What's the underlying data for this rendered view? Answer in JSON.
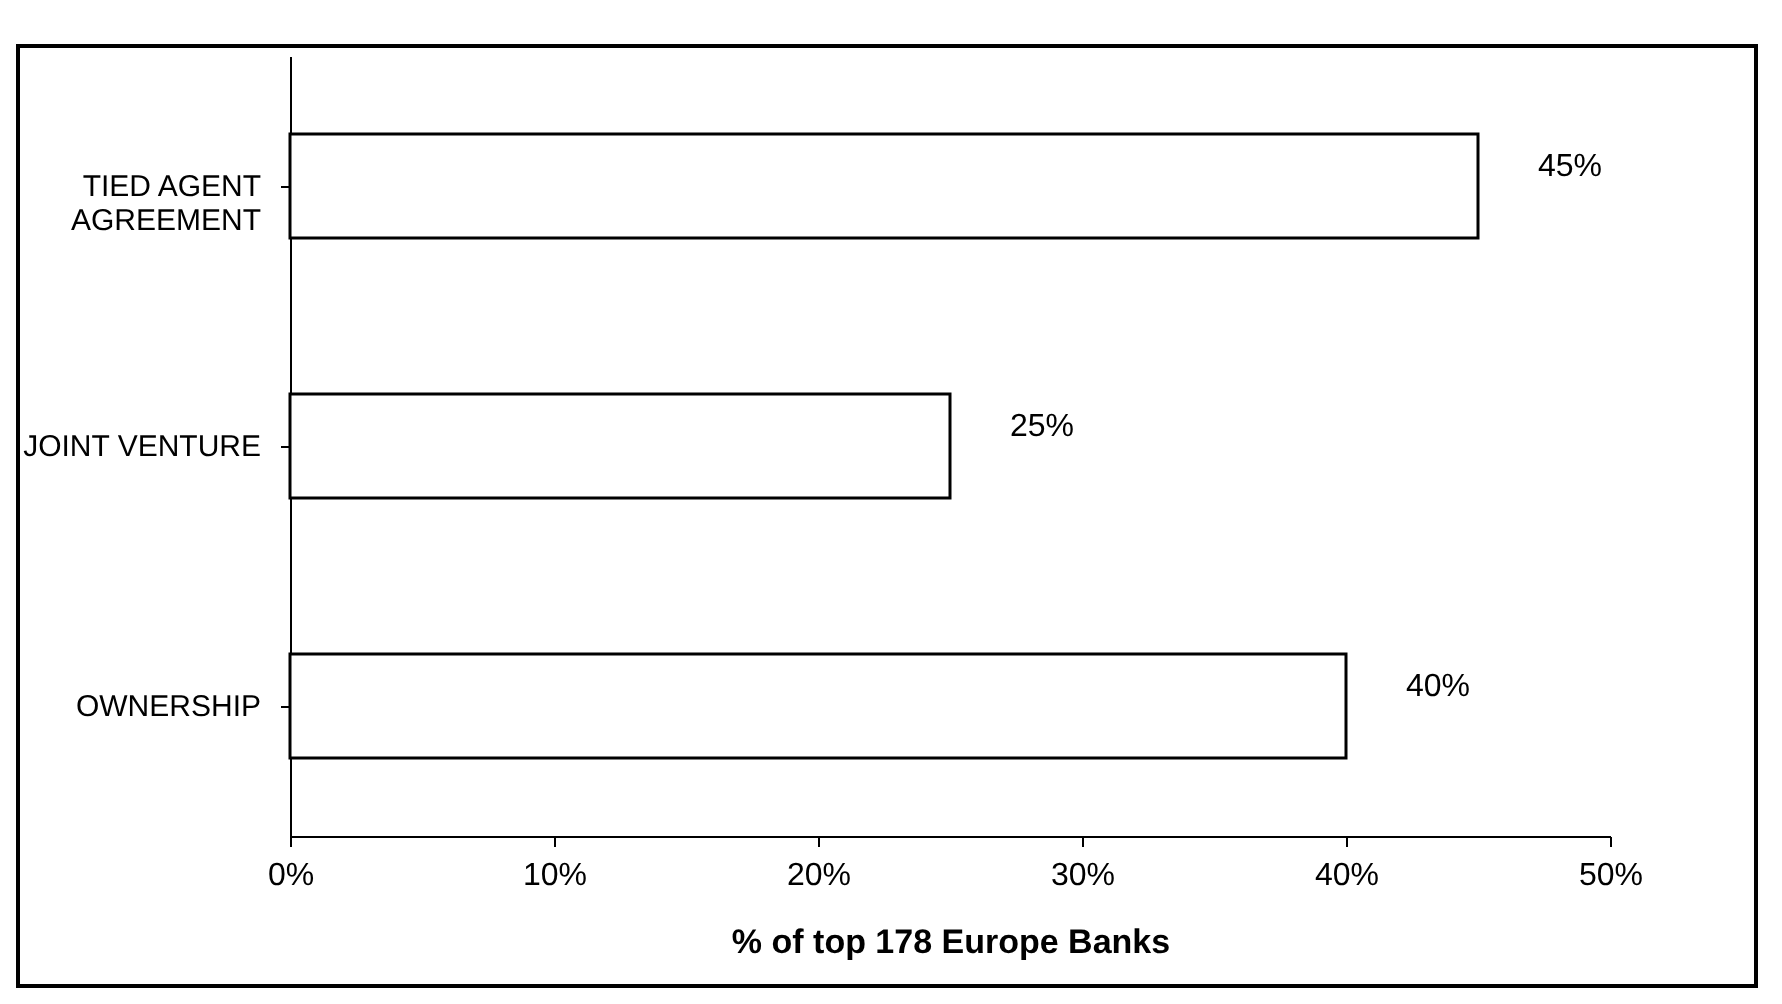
{
  "chart_data": {
    "type": "bar",
    "orientation": "horizontal",
    "xlabel": "% of top 178 Europe Banks",
    "categories": [
      "TIED AGENT AGREEMENT",
      "JOINT VENTURE",
      "OWNERSHIP"
    ],
    "values": [
      45,
      25,
      40
    ],
    "color": "#ffffff",
    "value_labels": [
      "45%",
      "25%",
      "40%"
    ],
    "xlim": [
      0,
      50
    ],
    "xticks": [
      {
        "value": 0,
        "label": "0%"
      },
      {
        "value": 10,
        "label": "10%"
      },
      {
        "value": 20,
        "label": "20%"
      },
      {
        "value": 30,
        "label": "30%"
      },
      {
        "value": 40,
        "label": "40%"
      },
      {
        "value": 50,
        "label": "50%"
      }
    ],
    "grid": false
  }
}
